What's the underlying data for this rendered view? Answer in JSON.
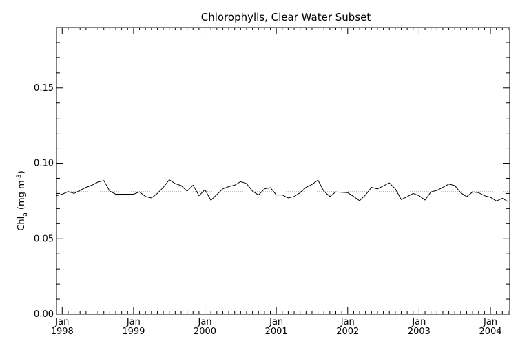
{
  "chart_data": {
    "type": "line",
    "title": "Chlorophylls, Clear Water Subset",
    "ylabel": {
      "prefix": "Chl",
      "subscript": "a",
      "unit_open": " (mg m",
      "superscript": "-3",
      "unit_close": ")"
    },
    "xlabel": "",
    "ylim": [
      0.0,
      0.19
    ],
    "xlim": [
      1997.92,
      2004.27
    ],
    "yticks": [
      {
        "value": 0.0,
        "label": "0.00"
      },
      {
        "value": 0.05,
        "label": "0.05"
      },
      {
        "value": 0.1,
        "label": "0.10"
      },
      {
        "value": 0.15,
        "label": "0.15"
      }
    ],
    "xticks": [
      {
        "value": 1998.0,
        "month": "Jan",
        "year": "1998"
      },
      {
        "value": 1999.0,
        "month": "Jan",
        "year": "1999"
      },
      {
        "value": 2000.0,
        "month": "Jan",
        "year": "2000"
      },
      {
        "value": 2001.0,
        "month": "Jan",
        "year": "2001"
      },
      {
        "value": 2002.0,
        "month": "Jan",
        "year": "2002"
      },
      {
        "value": 2003.0,
        "month": "Jan",
        "year": "2003"
      },
      {
        "value": 2004.0,
        "month": "Jan",
        "year": "2004"
      }
    ],
    "mean_line": 0.081,
    "series": [
      {
        "style": "solid",
        "x": [
          "1997-12",
          "1998-01",
          "1998-02",
          "1998-03",
          "1998-04",
          "1998-05",
          "1998-06",
          "1998-07",
          "1998-08",
          "1998-09",
          "1998-10",
          "1998-11",
          "1998-12",
          "1999-01",
          "1999-02",
          "1999-03",
          "1999-04",
          "1999-05",
          "1999-06",
          "1999-07",
          "1999-08",
          "1999-09",
          "1999-10",
          "1999-11",
          "1999-12",
          "2000-01",
          "2000-02",
          "2000-03",
          "2000-04",
          "2000-05",
          "2000-06",
          "2000-07",
          "2000-08",
          "2000-09",
          "2000-10",
          "2000-11",
          "2000-12",
          "2001-01",
          "2001-02",
          "2001-03",
          "2001-04",
          "2001-05",
          "2001-06",
          "2001-07",
          "2001-08",
          "2001-09",
          "2001-10",
          "2001-11",
          "2001-12",
          "2002-01",
          "2002-02",
          "2002-03",
          "2002-04",
          "2002-05",
          "2002-06",
          "2002-07",
          "2002-08",
          "2002-09",
          "2002-10",
          "2002-11",
          "2002-12",
          "2003-01",
          "2003-02",
          "2003-03",
          "2003-04",
          "2003-05",
          "2003-06",
          "2003-07",
          "2003-08",
          "2003-09",
          "2003-10",
          "2003-11",
          "2003-12",
          "2004-01",
          "2004-02",
          "2004-03",
          "2004-04"
        ],
        "values": [
          0.0785,
          0.0795,
          0.0812,
          0.08,
          0.082,
          0.084,
          0.0855,
          0.0875,
          0.0885,
          0.0815,
          0.0795,
          0.0795,
          0.0795,
          0.0795,
          0.081,
          0.078,
          0.077,
          0.08,
          0.084,
          0.089,
          0.0865,
          0.0852,
          0.0815,
          0.0855,
          0.0785,
          0.0825,
          0.0755,
          0.0793,
          0.083,
          0.0845,
          0.0855,
          0.0878,
          0.0865,
          0.0815,
          0.079,
          0.083,
          0.0838,
          0.079,
          0.079,
          0.077,
          0.078,
          0.0805,
          0.084,
          0.086,
          0.0888,
          0.0815,
          0.078,
          0.081,
          0.0808,
          0.0805,
          0.078,
          0.0752,
          0.079,
          0.084,
          0.083,
          0.085,
          0.087,
          0.083,
          0.076,
          0.0778,
          0.08,
          0.0785,
          0.0757,
          0.081,
          0.082,
          0.084,
          0.0862,
          0.0852,
          0.0805,
          0.0778,
          0.081,
          0.0805,
          0.0785,
          0.0775,
          0.075,
          0.0768,
          0.0745
        ]
      }
    ]
  }
}
